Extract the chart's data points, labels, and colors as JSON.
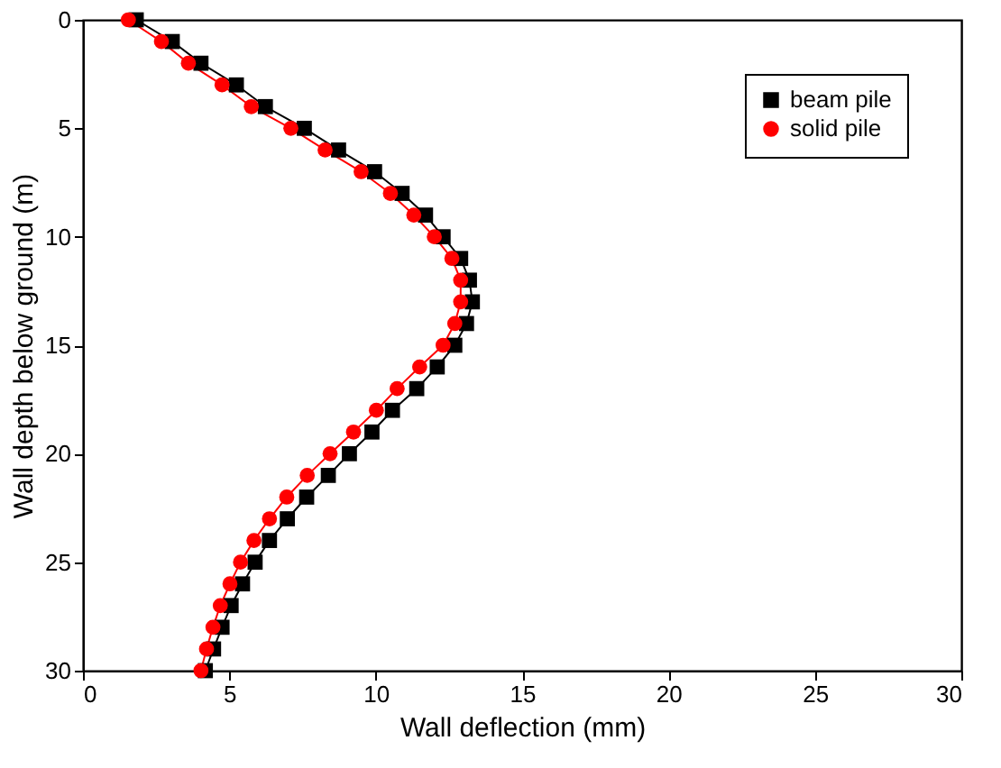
{
  "chart_data": {
    "type": "line",
    "xlabel": "Wall deflection (mm)",
    "ylabel": "Wall depth below ground (m)",
    "xlim": [
      0,
      30
    ],
    "xticks": [
      0,
      5,
      10,
      15,
      20,
      25,
      30
    ],
    "ylim": [
      30,
      0
    ],
    "yticks": [
      0,
      5,
      10,
      15,
      20,
      25,
      30
    ],
    "grid": false,
    "legend": "top right",
    "line_style": "solid",
    "series": [
      {
        "name": "beam pile",
        "color": "#000000",
        "marker": "square",
        "x": [
          1.82,
          3.05,
          4.03,
          5.24,
          6.23,
          7.56,
          8.73,
          9.96,
          10.9,
          11.7,
          12.3,
          12.9,
          13.2,
          13.3,
          13.1,
          12.7,
          12.1,
          11.4,
          10.57,
          9.87,
          9.1,
          8.38,
          7.64,
          6.98,
          6.37,
          5.88,
          5.45,
          5.06,
          4.75,
          4.46,
          4.18
        ],
        "values": [
          0,
          1,
          2,
          3,
          4,
          5,
          6,
          7,
          8,
          9,
          10,
          11,
          12,
          13,
          14,
          15,
          16,
          17,
          18,
          19,
          20,
          21,
          22,
          23,
          24,
          25,
          26,
          27,
          28,
          29,
          30
        ]
      },
      {
        "name": "solid pile",
        "color": "#ff0000",
        "marker": "circle",
        "x": [
          1.55,
          2.68,
          3.6,
          4.75,
          5.75,
          7.1,
          8.27,
          9.5,
          10.5,
          11.3,
          12.0,
          12.6,
          12.9,
          12.9,
          12.7,
          12.3,
          11.5,
          10.73,
          10.02,
          9.24,
          8.44,
          7.66,
          6.96,
          6.37,
          5.84,
          5.38,
          5.02,
          4.69,
          4.44,
          4.22,
          4.03
        ],
        "values": [
          0,
          1,
          2,
          3,
          4,
          5,
          6,
          7,
          8,
          9,
          10,
          11,
          12,
          13,
          14,
          15,
          16,
          17,
          18,
          19,
          20,
          21,
          22,
          23,
          24,
          25,
          26,
          27,
          28,
          29,
          30
        ]
      }
    ]
  }
}
